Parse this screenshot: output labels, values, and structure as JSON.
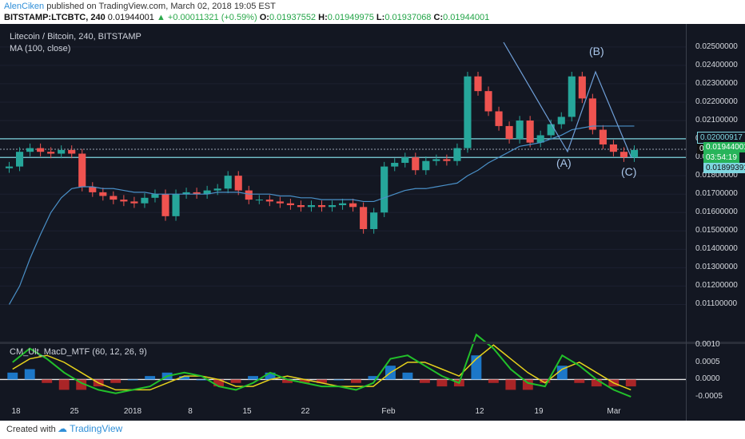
{
  "header": {
    "author": "AlenCiken",
    "published": "published on TradingView.com, March 02, 2018 19:05 EST",
    "symbol": "BITSTAMP:LTCBTC, 240",
    "last": "0.01944001",
    "change": "▲ +0.00011321 (+0.59%)",
    "o_label": "O:",
    "o": "0.01937552",
    "h_label": "H:",
    "h": "0.01949975",
    "l_label": "L:",
    "l": "0.01937068",
    "c_label": "C:",
    "c": "0.01944001"
  },
  "price_pane": {
    "title": "Litecoin / Bitcoin, 240, BITSTAMP",
    "indicator": "MA (100, close)",
    "tags": {
      "resistance": "0.02000917",
      "last": "0.01944001",
      "countdown": "03:54:19",
      "support": "0.01899391",
      "partial": "0."
    }
  },
  "macd_pane": {
    "title": "CM_Ult_MacD_MTF (60, 12, 26, 9)"
  },
  "colors": {
    "background": "#131722",
    "up": "#26a69a",
    "down": "#ef5350",
    "ma": "#4a90c8",
    "level": "#7fd6e0",
    "macd_up": "#22c02a",
    "macd_down": "#d81f1f",
    "signal": "#e6d21c"
  },
  "footer": {
    "created": "Created with",
    "brand": "TradingView"
  },
  "chart_data": [
    {
      "type": "candlestick",
      "title": "Litecoin / Bitcoin, 240, BITSTAMP",
      "x_ticks": [
        "18",
        "25",
        "2018",
        "8",
        "15",
        "22",
        "Feb",
        "12",
        "19",
        "Mar"
      ],
      "y_ticks": [
        "0.02500000",
        "0.02400000",
        "0.02300000",
        "0.02200000",
        "0.02100000",
        "0.02000000",
        "0.01900000",
        "0.01800000",
        "0.01700000",
        "0.01600000",
        "0.01500000",
        "0.01400000",
        "0.01300000",
        "0.01200000",
        "0.01100000"
      ],
      "ylim": [
        0.0105,
        0.0256
      ],
      "series": [
        {
          "name": "Close (approx.)",
          "values": [
            0.0185,
            0.0193,
            0.0195,
            0.0193,
            0.0192,
            0.0194,
            0.0192,
            0.0174,
            0.0171,
            0.0169,
            0.0167,
            0.0166,
            0.0165,
            0.0168,
            0.017,
            0.0158,
            0.017,
            0.0171,
            0.017,
            0.0172,
            0.0173,
            0.018,
            0.0172,
            0.0167,
            0.0167,
            0.0166,
            0.0165,
            0.0164,
            0.0163,
            0.0164,
            0.0163,
            0.0164,
            0.0165,
            0.0163,
            0.0151,
            0.016,
            0.0185,
            0.0187,
            0.019,
            0.0183,
            0.0188,
            0.0189,
            0.0188,
            0.0195,
            0.0234,
            0.0226,
            0.0215,
            0.0207,
            0.02,
            0.021,
            0.0198,
            0.0202,
            0.0208,
            0.0212,
            0.0234,
            0.0222,
            0.0205,
            0.0197,
            0.0193,
            0.019,
            0.0194
          ]
        },
        {
          "name": "MA (100, close)",
          "values": [
            0.011,
            0.012,
            0.0135,
            0.0148,
            0.016,
            0.0168,
            0.0173,
            0.0174,
            0.0174,
            0.0173,
            0.0173,
            0.0172,
            0.0171,
            0.0171,
            0.017,
            0.017,
            0.017,
            0.017,
            0.017,
            0.017,
            0.0171,
            0.0171,
            0.0171,
            0.017,
            0.017,
            0.017,
            0.0169,
            0.0169,
            0.0168,
            0.0168,
            0.0167,
            0.0167,
            0.0167,
            0.0167,
            0.0166,
            0.0166,
            0.0168,
            0.017,
            0.0172,
            0.0173,
            0.0173,
            0.0174,
            0.0175,
            0.0176,
            0.018,
            0.0183,
            0.0187,
            0.019,
            0.0193,
            0.0196,
            0.0197,
            0.0198,
            0.02,
            0.0202,
            0.0205,
            0.0206,
            0.0207,
            0.0207,
            0.0207,
            0.0207,
            0.0207
          ]
        }
      ],
      "horizontal_levels": [
        0.02000917,
        0.01944001,
        0.01899391
      ],
      "annotations": [
        "(A)",
        "(B)",
        "(C)"
      ]
    },
    {
      "type": "line",
      "title": "CM_Ult_MacD_MTF (60, 12, 26, 9)",
      "y_ticks": [
        "0.0010",
        "0.0005",
        "0.0000",
        "-0.0005"
      ],
      "ylim": [
        -0.0008,
        0.0014
      ],
      "series": [
        {
          "name": "MACD (approx.)",
          "values": [
            0.0005,
            0.0009,
            0.0006,
            0.0002,
            -0.0001,
            -0.0003,
            -0.0004,
            -0.0003,
            -0.0002,
            0.0001,
            0.0002,
            0.0001,
            -0.0002,
            -0.0003,
            -0.0001,
            0.0002,
            0.0,
            -0.0001,
            -0.0002,
            -0.0002,
            -0.0003,
            -0.0001,
            0.0006,
            0.0007,
            0.0004,
            0.0001,
            -0.0001,
            0.0013,
            0.0009,
            0.0003,
            -0.0001,
            -0.0002,
            0.0007,
            0.0004,
            0.0,
            -0.0003,
            -0.0005
          ]
        },
        {
          "name": "Signal (approx.)",
          "values": [
            0.0003,
            0.0006,
            0.0007,
            0.0005,
            0.0002,
            -0.0001,
            -0.0003,
            -0.0003,
            -0.0003,
            -0.0001,
            0.0001,
            0.0001,
            0.0,
            -0.0002,
            -0.0002,
            0.0,
            0.0001,
            0.0,
            -0.0001,
            -0.0002,
            -0.0002,
            -0.0002,
            0.0002,
            0.0005,
            0.0005,
            0.0003,
            0.0001,
            0.0006,
            0.001,
            0.0006,
            0.0002,
            -0.0001,
            0.0003,
            0.0005,
            0.0002,
            -0.0001,
            -0.0003
          ]
        }
      ]
    }
  ]
}
